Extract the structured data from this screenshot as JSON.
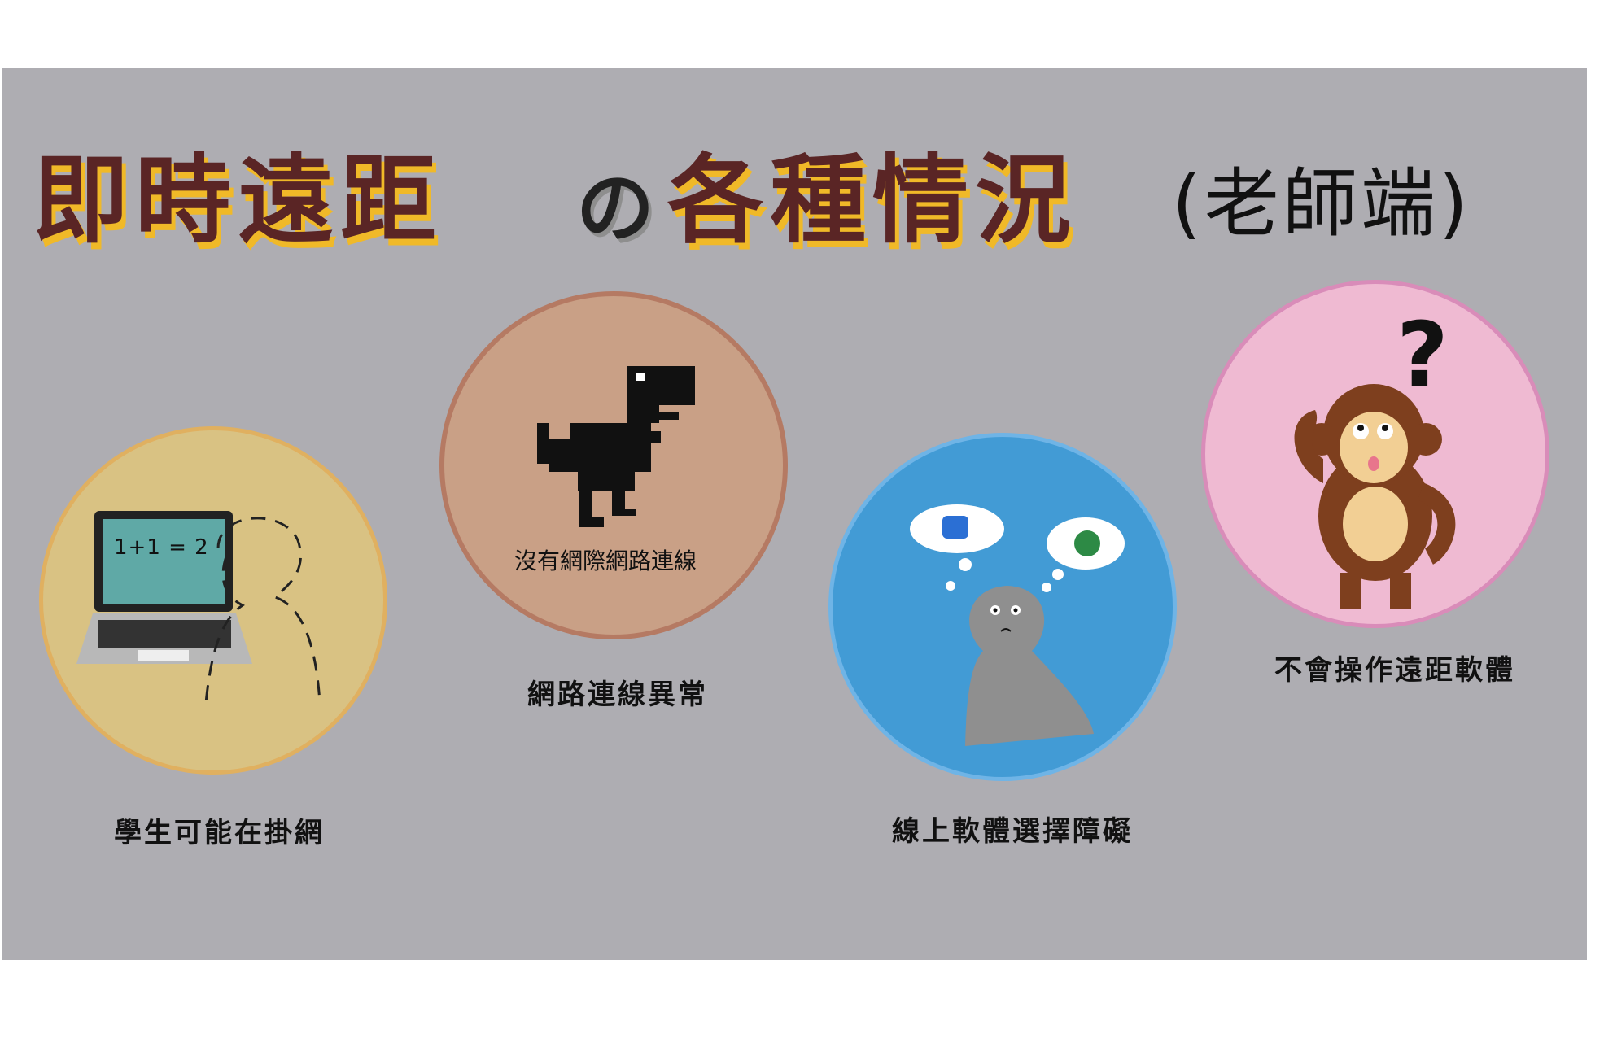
{
  "title": {
    "part1": "即時遠距",
    "particle": "の",
    "part2": "各種情況",
    "subtitle": "(老師端)"
  },
  "scenes": [
    {
      "caption": "學生可能在掛網",
      "screen_text": "1+1 = 2",
      "color": "#d9c283"
    },
    {
      "caption": "網路連線異常",
      "inner_text": "沒有網際網路連線",
      "color": "#c9a086"
    },
    {
      "caption": "線上軟體選擇障礙",
      "color": "#429bd5"
    },
    {
      "caption": "不會操作遠距軟體",
      "color": "#efbad2"
    }
  ],
  "colors": {
    "panel": "#aeadb2",
    "title_brown": "#5a2525",
    "title_yellow": "#f0b928"
  }
}
